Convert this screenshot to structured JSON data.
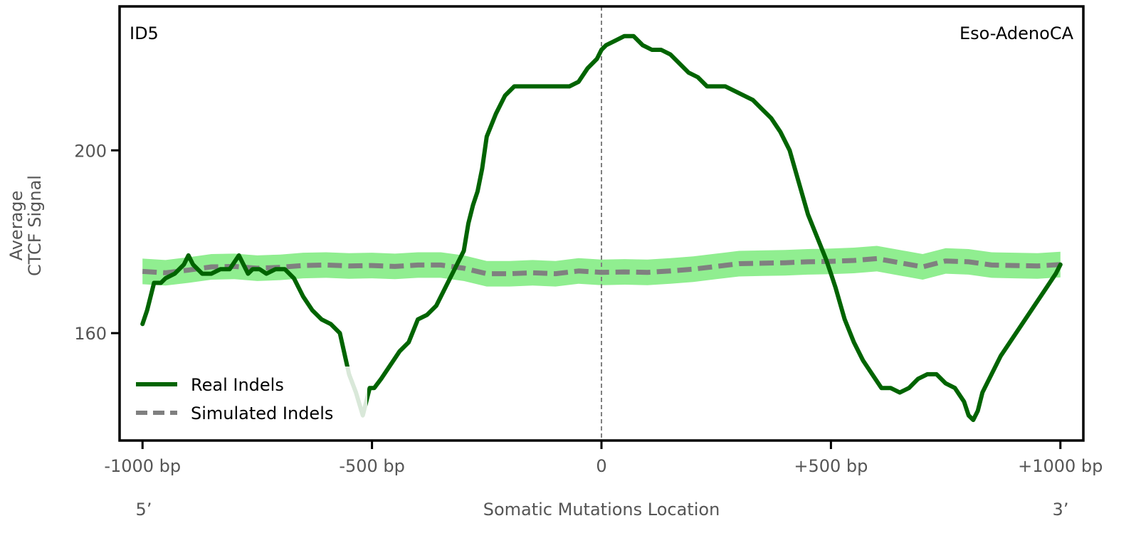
{
  "chart_data": {
    "type": "line",
    "panel_label_left": "ID5",
    "panel_label_right": "Eso-AdenoCA",
    "xlabel": "Somatic Mutations Location",
    "ylabel_line1": "Average",
    "ylabel_line2": "CTCF Signal",
    "x_end_left": "5’",
    "x_end_right": "3’",
    "xlim": [
      -1050,
      1050
    ],
    "ylim": [
      136.5,
      231.5
    ],
    "x_ticks": [
      {
        "value": -1000,
        "label": "-1000 bp"
      },
      {
        "value": -500,
        "label": "-500 bp"
      },
      {
        "value": 0,
        "label": "0"
      },
      {
        "value": 500,
        "label": "+500 bp"
      },
      {
        "value": 1000,
        "label": "+1000 bp"
      }
    ],
    "y_ticks": [
      {
        "value": 160,
        "label": "160"
      },
      {
        "value": 200,
        "label": "200"
      }
    ],
    "center_line": 0,
    "colors": {
      "real": "#006400",
      "simulated": "#808080",
      "band": "#90EE90",
      "center_line": "#808080",
      "frame": "#000000"
    },
    "legend": {
      "position": "bottom-left",
      "items": [
        "Real Indels",
        "Simulated Indels"
      ]
    },
    "series": [
      {
        "name": "Real Indels",
        "style": "solid",
        "x": [
          -1000,
          -990,
          -975,
          -960,
          -950,
          -930,
          -910,
          -900,
          -890,
          -870,
          -850,
          -830,
          -810,
          -790,
          -770,
          -760,
          -745,
          -730,
          -710,
          -690,
          -670,
          -650,
          -630,
          -610,
          -590,
          -570,
          -550,
          -535,
          -520,
          -505,
          -495,
          -480,
          -460,
          -440,
          -420,
          -400,
          -380,
          -360,
          -340,
          -320,
          -300,
          -290,
          -280,
          -270,
          -260,
          -250,
          -230,
          -210,
          -190,
          -170,
          -150,
          -130,
          -110,
          -90,
          -70,
          -50,
          -30,
          -10,
          0,
          10,
          30,
          50,
          70,
          90,
          110,
          130,
          150,
          170,
          190,
          210,
          230,
          250,
          270,
          290,
          310,
          330,
          350,
          370,
          390,
          410,
          430,
          450,
          470,
          490,
          500,
          510,
          530,
          550,
          570,
          590,
          610,
          630,
          650,
          670,
          690,
          710,
          730,
          750,
          770,
          790,
          800,
          810,
          820,
          830,
          850,
          870,
          890,
          910,
          930,
          950,
          970,
          990,
          1000
        ],
        "y": [
          162,
          165,
          171,
          171,
          172,
          173,
          175,
          177,
          175,
          173,
          173,
          174,
          174,
          177,
          173,
          174,
          174,
          173,
          174,
          174,
          172,
          168,
          165,
          163,
          162,
          160,
          151,
          147,
          142,
          148,
          148,
          150,
          153,
          156,
          158,
          163,
          164,
          166,
          170,
          174,
          178,
          184,
          188,
          191,
          196,
          203,
          208,
          212,
          214,
          214,
          214,
          214,
          214,
          214,
          214,
          215,
          218,
          220,
          222,
          223,
          224,
          225,
          225,
          223,
          222,
          222,
          221,
          219,
          217,
          216,
          214,
          214,
          214,
          213,
          212,
          211,
          209,
          207,
          204,
          200,
          193,
          186,
          181,
          176,
          173,
          170,
          163,
          158,
          154,
          151,
          148,
          148,
          147,
          148,
          150,
          151,
          151,
          149,
          148,
          145,
          142,
          141,
          143,
          147,
          151,
          155,
          158,
          161,
          164,
          167,
          170,
          173,
          175
        ]
      },
      {
        "name": "Simulated Indels",
        "style": "dashed",
        "x": [
          -1000,
          -950,
          -900,
          -850,
          -800,
          -750,
          -700,
          -650,
          -600,
          -550,
          -500,
          -450,
          -400,
          -350,
          -300,
          -250,
          -200,
          -150,
          -100,
          -50,
          0,
          50,
          100,
          150,
          200,
          250,
          300,
          350,
          400,
          450,
          500,
          550,
          600,
          650,
          700,
          750,
          800,
          850,
          900,
          950,
          1000
        ],
        "y": [
          173.5,
          173.2,
          173.8,
          174.5,
          174.6,
          174.2,
          174.4,
          174.8,
          174.9,
          174.7,
          174.8,
          174.6,
          174.9,
          174.9,
          174.2,
          173.0,
          173.0,
          173.2,
          173.0,
          173.6,
          173.3,
          173.4,
          173.3,
          173.6,
          174.0,
          174.6,
          175.2,
          175.3,
          175.4,
          175.6,
          175.7,
          175.9,
          176.3,
          175.4,
          174.5,
          175.8,
          175.6,
          174.9,
          174.8,
          174.7,
          175.0
        ]
      }
    ],
    "band_halfwidth": 2.8
  }
}
